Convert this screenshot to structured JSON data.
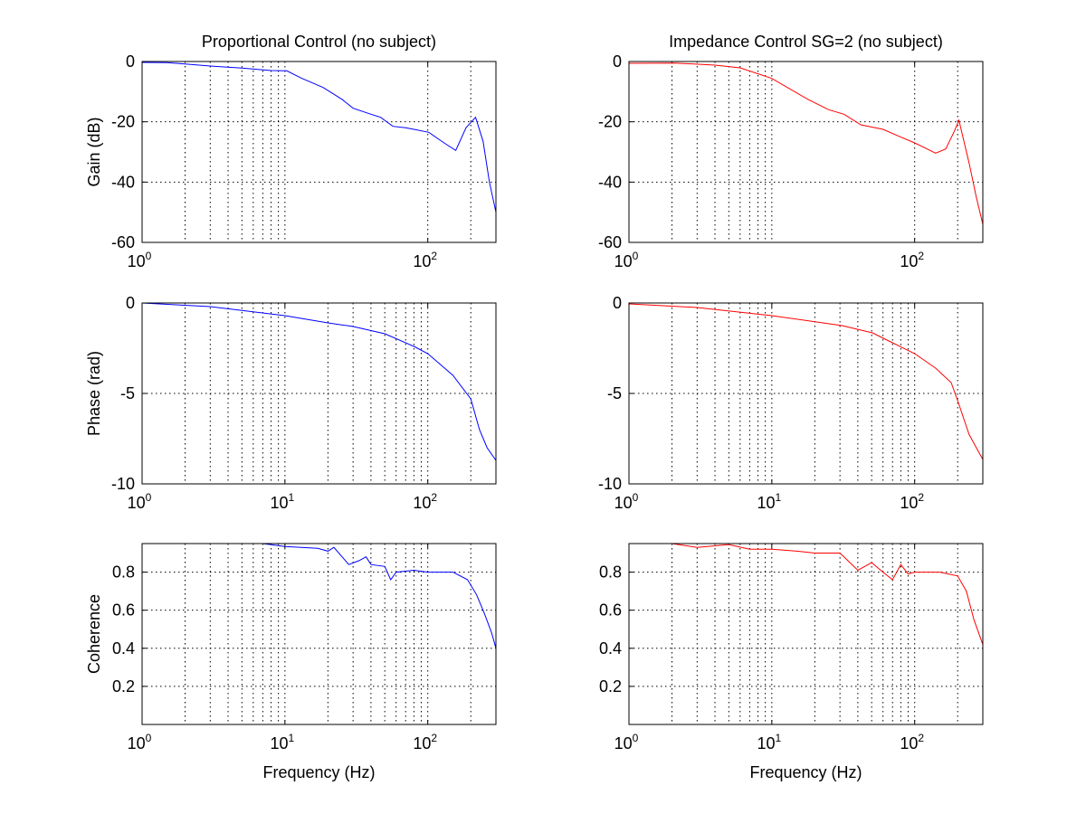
{
  "chart_data": [
    {
      "type": "line",
      "title": "Proportional Control (no subject)",
      "xlabel": "",
      "ylabel": "Gain (dB)",
      "xscale": "log",
      "xlim": [
        1,
        300
      ],
      "ylim": [
        -60,
        0
      ],
      "yticks": [
        0,
        -20,
        -40,
        -60
      ],
      "xticks": [
        1,
        100
      ],
      "x_tick_labels": [
        "10^0",
        "10^2"
      ],
      "xgrid": [
        2,
        3,
        4,
        5,
        6,
        7,
        8,
        9,
        10,
        100,
        200
      ],
      "grid": true,
      "color": "#0000ff",
      "x": [
        1,
        1.5,
        2,
        3,
        5,
        8,
        10.3,
        13,
        18.5,
        25,
        30,
        40,
        46.7,
        57,
        70,
        80,
        101.6,
        130,
        157,
        185,
        216,
        244,
        270,
        300
      ],
      "y": [
        -0.3,
        -0.4,
        -0.8,
        -1.5,
        -2.2,
        -3,
        -3.1,
        -5.5,
        -8.6,
        -12.5,
        -15.5,
        -17.5,
        -18.5,
        -21.5,
        -22,
        -22.5,
        -23.5,
        -27,
        -29.5,
        -22,
        -18.5,
        -26.5,
        -40,
        -50
      ]
    },
    {
      "type": "line",
      "title": "Impedance Control SG=2 (no subject)",
      "xlabel": "",
      "ylabel": "",
      "xscale": "log",
      "xlim": [
        1,
        300
      ],
      "ylim": [
        -60,
        0
      ],
      "yticks": [
        0,
        -20,
        -40,
        -60
      ],
      "xticks": [
        1,
        100
      ],
      "x_tick_labels": [
        "10^0",
        "10^2"
      ],
      "xgrid": [
        2,
        3,
        4,
        5,
        6,
        7,
        8,
        9,
        10,
        100,
        200
      ],
      "grid": true,
      "color": "#ff0000",
      "x": [
        1,
        2.1,
        4,
        6,
        10,
        17.8,
        25,
        32,
        42,
        60,
        75,
        100,
        140,
        165,
        190,
        204,
        240,
        270,
        300
      ],
      "y": [
        -0.6,
        -0.5,
        -1.2,
        -2.1,
        -5.6,
        -12.5,
        -16,
        -17.5,
        -21,
        -22.5,
        -24.5,
        -27,
        -30.4,
        -29,
        -23,
        -19.5,
        -33.5,
        -45,
        -54
      ]
    },
    {
      "type": "line",
      "title": "",
      "xlabel": "",
      "ylabel": "Phase (rad)",
      "xscale": "log",
      "xlim": [
        1,
        300
      ],
      "ylim": [
        -10,
        0
      ],
      "yticks": [
        0,
        -5,
        -10
      ],
      "xticks": [
        1,
        10,
        100
      ],
      "x_tick_labels": [
        "10^0",
        "10^1",
        "10^2"
      ],
      "xgrid": [
        2,
        3,
        4,
        5,
        6,
        7,
        8,
        9,
        10,
        20,
        30,
        40,
        50,
        60,
        70,
        80,
        90,
        100,
        200
      ],
      "grid": true,
      "color": "#0000ff",
      "x": [
        1,
        3,
        10,
        20,
        30,
        50,
        80,
        100,
        150,
        200,
        230,
        260,
        300
      ],
      "y": [
        0,
        -0.2,
        -0.7,
        -1.1,
        -1.3,
        -1.7,
        -2.4,
        -2.8,
        -4,
        -5.3,
        -7,
        -8,
        -8.7
      ]
    },
    {
      "type": "line",
      "title": "",
      "xlabel": "",
      "ylabel": "",
      "xscale": "log",
      "xlim": [
        1,
        300
      ],
      "ylim": [
        -10,
        0
      ],
      "yticks": [
        0,
        -5,
        -10
      ],
      "xticks": [
        1,
        10,
        100
      ],
      "x_tick_labels": [
        "10^0",
        "10^1",
        "10^2"
      ],
      "xgrid": [
        2,
        3,
        4,
        5,
        6,
        7,
        8,
        9,
        10,
        20,
        30,
        40,
        50,
        60,
        70,
        80,
        90,
        100,
        200
      ],
      "grid": true,
      "color": "#ff0000",
      "x": [
        1,
        3,
        10,
        31,
        50.6,
        70,
        100,
        140,
        180,
        200,
        240,
        270,
        300
      ],
      "y": [
        -0.05,
        -0.25,
        -0.7,
        -1.25,
        -1.65,
        -2.2,
        -2.8,
        -3.6,
        -4.4,
        -5.4,
        -7.25,
        -8,
        -8.65
      ]
    },
    {
      "type": "line",
      "title": "",
      "xlabel": "Frequency (Hz)",
      "ylabel": "Coherence",
      "xscale": "log",
      "xlim": [
        1,
        300
      ],
      "ylim": [
        0,
        0.95
      ],
      "yticks": [
        0.2,
        0.4,
        0.6,
        0.8
      ],
      "xticks": [
        1,
        10,
        100
      ],
      "x_tick_labels": [
        "10^0",
        "10^1",
        "10^2"
      ],
      "xgrid": [
        2,
        3,
        4,
        5,
        6,
        7,
        8,
        9,
        10,
        20,
        30,
        40,
        50,
        60,
        70,
        80,
        90,
        100,
        200
      ],
      "grid": true,
      "color": "#0000ff",
      "x": [
        1,
        1.3,
        4,
        7,
        10,
        17,
        20,
        22,
        28,
        33,
        37,
        40,
        50,
        55,
        60,
        80,
        100,
        150,
        190,
        220,
        250,
        280,
        300
      ],
      "y": [
        0.95,
        0.95,
        0.95,
        0.95,
        0.935,
        0.925,
        0.91,
        0.93,
        0.84,
        0.86,
        0.88,
        0.84,
        0.83,
        0.76,
        0.8,
        0.81,
        0.8,
        0.8,
        0.76,
        0.68,
        0.58,
        0.48,
        0.4
      ]
    },
    {
      "type": "line",
      "title": "",
      "xlabel": "Frequency (Hz)",
      "ylabel": "",
      "xscale": "log",
      "xlim": [
        1,
        300
      ],
      "ylim": [
        0,
        0.95
      ],
      "yticks": [
        0.2,
        0.4,
        0.6,
        0.8
      ],
      "xticks": [
        1,
        10,
        100
      ],
      "x_tick_labels": [
        "10^0",
        "10^1",
        "10^2"
      ],
      "xgrid": [
        2,
        3,
        4,
        5,
        6,
        7,
        8,
        9,
        10,
        20,
        30,
        40,
        50,
        60,
        70,
        80,
        90,
        100,
        200
      ],
      "grid": true,
      "color": "#ff0000",
      "x": [
        2,
        3,
        5,
        7,
        10,
        15,
        20,
        30,
        40,
        50,
        60,
        70,
        80,
        90,
        100,
        150,
        200,
        230,
        260,
        300
      ],
      "y": [
        0.95,
        0.93,
        0.945,
        0.92,
        0.92,
        0.91,
        0.9,
        0.9,
        0.81,
        0.85,
        0.8,
        0.76,
        0.84,
        0.79,
        0.8,
        0.8,
        0.78,
        0.7,
        0.55,
        0.42
      ]
    }
  ]
}
